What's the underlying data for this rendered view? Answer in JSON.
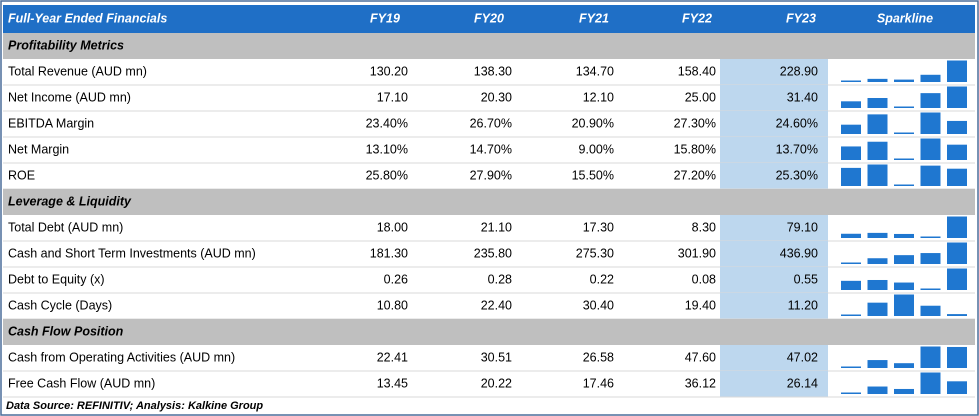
{
  "header": {
    "title": "Full-Year Ended Financials",
    "columns": [
      "FY19",
      "FY20",
      "FY21",
      "FY22",
      "FY23"
    ],
    "sparkline": "Sparkline"
  },
  "sections": [
    {
      "title": "Profitability Metrics",
      "rows": [
        {
          "label": "Total Revenue (AUD mn)",
          "values": [
            "130.20",
            "138.30",
            "134.70",
            "158.40",
            "228.90"
          ]
        },
        {
          "label": "Net Income (AUD mn)",
          "values": [
            "17.10",
            "20.30",
            "12.10",
            "25.00",
            "31.40"
          ]
        },
        {
          "label": "EBITDA Margin",
          "values": [
            "23.40%",
            "26.70%",
            "20.90%",
            "27.30%",
            "24.60%"
          ]
        },
        {
          "label": "Net Margin",
          "values": [
            "13.10%",
            "14.70%",
            "9.00%",
            "15.80%",
            "13.70%"
          ]
        },
        {
          "label": "ROE",
          "values": [
            "25.80%",
            "27.90%",
            "15.50%",
            "27.20%",
            "25.30%"
          ]
        }
      ]
    },
    {
      "title": "Leverage & Liquidity",
      "rows": [
        {
          "label": "Total Debt (AUD mn)",
          "values": [
            "18.00",
            "21.10",
            "17.30",
            "8.30",
            "79.10"
          ]
        },
        {
          "label": "Cash and Short Term Investments (AUD mn)",
          "values": [
            "181.30",
            "235.80",
            "275.30",
            "301.90",
            "436.90"
          ]
        },
        {
          "label": "Debt to Equity (x)",
          "values": [
            "0.26",
            "0.28",
            "0.22",
            "0.08",
            "0.55"
          ]
        },
        {
          "label": "Cash Cycle (Days)",
          "values": [
            "10.80",
            "22.40",
            "30.40",
            "19.40",
            "11.20"
          ]
        }
      ]
    },
    {
      "title": "Cash Flow Position",
      "rows": [
        {
          "label": "Cash from Operating Activities (AUD mn)",
          "values": [
            "22.41",
            "30.51",
            "26.58",
            "47.60",
            "47.02"
          ]
        },
        {
          "label": "Free Cash Flow (AUD mn)",
          "values": [
            "13.45",
            "20.22",
            "17.46",
            "36.12",
            "26.14"
          ]
        }
      ]
    }
  ],
  "footer": "Data Source: REFINITIV; Analysis: Kalkine Group"
}
